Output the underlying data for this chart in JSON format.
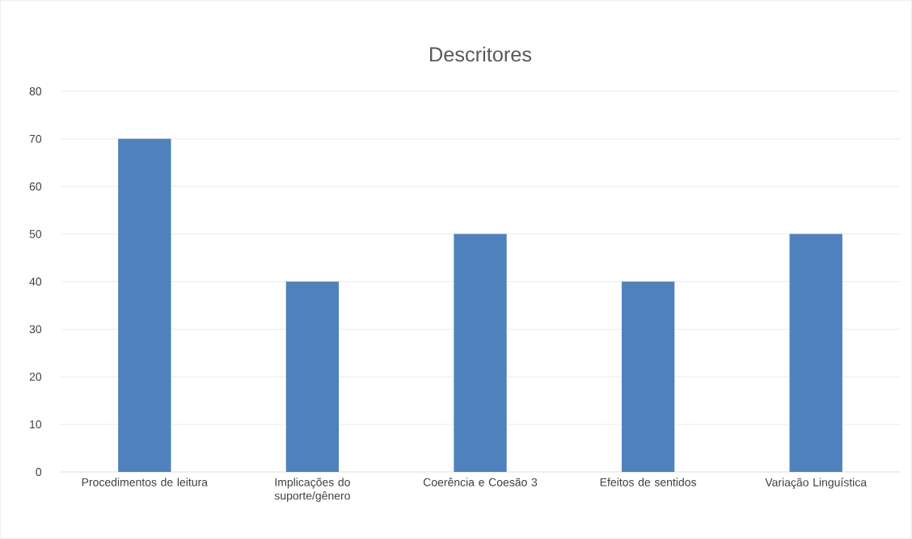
{
  "chart_data": {
    "type": "bar",
    "title": "Descritores",
    "categories": [
      "Procedimentos de leitura",
      "Implicações do suporte/gênero",
      "Coerência e Coesão 3",
      "Efeitos de sentidos",
      "Variação Linguística"
    ],
    "values": [
      70,
      40,
      50,
      40,
      50
    ],
    "color": "#4f81bd",
    "ylim": [
      0,
      80
    ],
    "yticks": [
      0,
      10,
      20,
      30,
      40,
      50,
      60,
      70,
      80
    ],
    "grid": "y"
  }
}
